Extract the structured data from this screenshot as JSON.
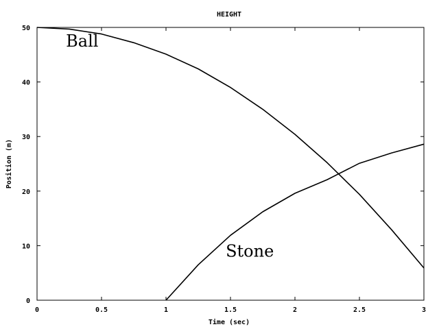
{
  "chart_data": {
    "type": "line",
    "title": "HEIGHT",
    "xlabel": "Time (sec)",
    "ylabel": "Position (m)",
    "xlim": [
      0,
      3
    ],
    "ylim": [
      0,
      50
    ],
    "grid": false,
    "x_ticks": [
      0,
      0.5,
      1,
      1.5,
      2,
      2.5,
      3
    ],
    "x_tick_labels": [
      "0",
      "0.5",
      "1",
      "1.5",
      "2",
      "2.5",
      "3"
    ],
    "y_ticks": [
      0,
      10,
      20,
      30,
      40,
      50
    ],
    "y_tick_labels": [
      "0",
      "10",
      "20",
      "30",
      "40",
      "50"
    ],
    "series": [
      {
        "name": "Ball",
        "color": "#000000",
        "x": [
          0,
          0.25,
          0.5,
          0.75,
          1.0,
          1.25,
          1.5,
          1.75,
          2.0,
          2.25,
          2.5,
          2.75,
          3.0
        ],
        "y": [
          50.0,
          49.7,
          48.8,
          47.2,
          45.1,
          42.4,
          39.0,
          35.0,
          30.4,
          25.2,
          19.4,
          12.9,
          5.9
        ]
      },
      {
        "name": "Stone",
        "color": "#000000",
        "x": [
          1.0,
          1.25,
          1.5,
          1.75,
          2.0,
          2.25,
          2.5,
          2.75,
          3.0
        ],
        "y": [
          0.0,
          6.5,
          11.9,
          16.2,
          19.6,
          22.1,
          25.1,
          27.0,
          28.6
        ]
      }
    ],
    "annotations": [
      {
        "text": "Ball",
        "x": 0.35,
        "y": 46.5
      },
      {
        "text": "Stone",
        "x": 1.65,
        "y": 8.0
      }
    ]
  }
}
